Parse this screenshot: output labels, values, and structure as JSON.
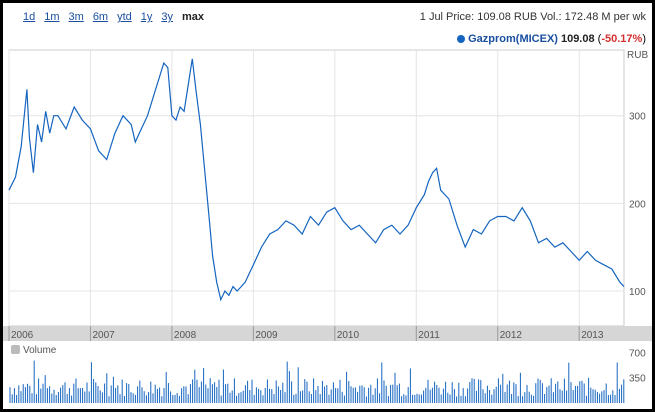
{
  "toolbar": {
    "ranges": [
      "1d",
      "1m",
      "3m",
      "6m",
      "ytd",
      "1y",
      "3y",
      "max"
    ],
    "active_range": "max",
    "quote_text": "1 Jul Price: 109.08 RUB Vol.: 172.48 M  per wk"
  },
  "legend": {
    "name": "Gazprom(MICEX)",
    "value": "109.08",
    "change_open": "(",
    "change": "-50.17%",
    "change_close": ")",
    "color": "#1565c0"
  },
  "volume_label": "Volume",
  "chart_data": {
    "type": "line",
    "ylabel": "RUB",
    "yticks": [
      100,
      200,
      300
    ],
    "ylim": [
      60,
      375
    ],
    "x_tick_labels": [
      "2006",
      "2007",
      "2008",
      "2009",
      "2010",
      "2011",
      "2012",
      "2013"
    ],
    "x_range": [
      2006.0,
      2013.55
    ],
    "series": [
      {
        "name": "Gazprom(MICEX)",
        "x": [
          2006.0,
          2006.08,
          2006.15,
          2006.22,
          2006.25,
          2006.3,
          2006.35,
          2006.4,
          2006.45,
          2006.5,
          2006.55,
          2006.6,
          2006.7,
          2006.8,
          2006.9,
          2007.0,
          2007.1,
          2007.2,
          2007.3,
          2007.4,
          2007.5,
          2007.55,
          2007.6,
          2007.7,
          2007.8,
          2007.9,
          2007.95,
          2008.0,
          2008.05,
          2008.1,
          2008.15,
          2008.2,
          2008.25,
          2008.3,
          2008.35,
          2008.4,
          2008.45,
          2008.5,
          2008.55,
          2008.6,
          2008.65,
          2008.7,
          2008.75,
          2008.8,
          2008.85,
          2008.9,
          2008.95,
          2009.0,
          2009.1,
          2009.2,
          2009.3,
          2009.4,
          2009.5,
          2009.6,
          2009.7,
          2009.8,
          2009.9,
          2010.0,
          2010.1,
          2010.2,
          2010.3,
          2010.4,
          2010.5,
          2010.6,
          2010.7,
          2010.8,
          2010.9,
          2011.0,
          2011.1,
          2011.15,
          2011.2,
          2011.25,
          2011.3,
          2011.4,
          2011.5,
          2011.6,
          2011.7,
          2011.8,
          2011.9,
          2012.0,
          2012.1,
          2012.2,
          2012.3,
          2012.4,
          2012.5,
          2012.6,
          2012.7,
          2012.8,
          2012.9,
          2013.0,
          2013.1,
          2013.2,
          2013.3,
          2013.4,
          2013.5,
          2013.55
        ],
        "values": [
          215,
          230,
          265,
          330,
          275,
          235,
          290,
          270,
          305,
          280,
          300,
          300,
          285,
          310,
          295,
          285,
          260,
          250,
          280,
          300,
          290,
          270,
          280,
          300,
          330,
          360,
          355,
          300,
          295,
          310,
          305,
          335,
          365,
          325,
          290,
          240,
          190,
          140,
          110,
          90,
          100,
          95,
          105,
          100,
          105,
          110,
          120,
          130,
          150,
          165,
          170,
          180,
          175,
          165,
          185,
          175,
          190,
          195,
          180,
          170,
          175,
          165,
          155,
          170,
          175,
          165,
          175,
          195,
          210,
          225,
          235,
          240,
          215,
          205,
          175,
          150,
          170,
          165,
          180,
          185,
          185,
          180,
          195,
          180,
          155,
          160,
          150,
          155,
          145,
          135,
          145,
          135,
          130,
          125,
          110,
          105
        ]
      }
    ],
    "volume": {
      "yticks": [
        350,
        700
      ],
      "ylim": [
        0,
        800
      ]
    }
  }
}
